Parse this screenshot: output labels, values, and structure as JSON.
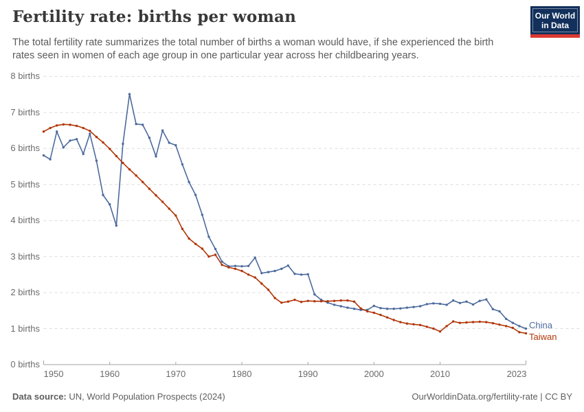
{
  "header": {
    "title": "Fertility rate: births per woman",
    "subtitle": "The total fertility rate summarizes the total number of births a woman would have, if she experienced the birth rates seen in women of each age group in one particular year across her childbearing years.",
    "logo": {
      "line1": "Our World",
      "line2": "in Data",
      "bg_color": "#12305b",
      "accent_color": "#dc3932"
    }
  },
  "chart_data": {
    "type": "line",
    "title": "Fertility rate: births per woman",
    "xlabel": "",
    "ylabel": "births",
    "xlim": [
      1950,
      2023
    ],
    "ylim": [
      0,
      8
    ],
    "grid": "horizontal-dashed",
    "legend_position": "end-of-line-labels",
    "x_ticks": [
      1950,
      1960,
      1970,
      1980,
      1990,
      2000,
      2010,
      2023
    ],
    "y_ticks": [
      {
        "value": 0,
        "label": "0 births"
      },
      {
        "value": 1,
        "label": "1 births"
      },
      {
        "value": 2,
        "label": "2 births"
      },
      {
        "value": 3,
        "label": "3 births"
      },
      {
        "value": 4,
        "label": "4 births"
      },
      {
        "value": 5,
        "label": "5 births"
      },
      {
        "value": 6,
        "label": "6 births"
      },
      {
        "value": 7,
        "label": "7 births"
      },
      {
        "value": 8,
        "label": "8 births"
      }
    ],
    "x": [
      1950,
      1951,
      1952,
      1953,
      1954,
      1955,
      1956,
      1957,
      1958,
      1959,
      1960,
      1961,
      1962,
      1963,
      1964,
      1965,
      1966,
      1967,
      1968,
      1969,
      1970,
      1971,
      1972,
      1973,
      1974,
      1975,
      1976,
      1977,
      1978,
      1979,
      1980,
      1981,
      1982,
      1983,
      1984,
      1985,
      1986,
      1987,
      1988,
      1989,
      1990,
      1991,
      1992,
      1993,
      1994,
      1995,
      1996,
      1997,
      1998,
      1999,
      2000,
      2001,
      2002,
      2003,
      2004,
      2005,
      2006,
      2007,
      2008,
      2009,
      2010,
      2011,
      2012,
      2013,
      2014,
      2015,
      2016,
      2017,
      2018,
      2019,
      2020,
      2021,
      2022,
      2023
    ],
    "series": [
      {
        "name": "China",
        "color": "#4C6A9C",
        "values": [
          5.81,
          5.7,
          6.47,
          6.03,
          6.22,
          6.26,
          5.85,
          6.41,
          5.66,
          4.71,
          4.45,
          3.86,
          6.13,
          7.51,
          6.68,
          6.66,
          6.3,
          5.78,
          6.5,
          6.16,
          6.09,
          5.56,
          5.07,
          4.71,
          4.16,
          3.55,
          3.21,
          2.86,
          2.73,
          2.74,
          2.73,
          2.74,
          2.97,
          2.54,
          2.57,
          2.6,
          2.66,
          2.75,
          2.52,
          2.5,
          2.51,
          1.95,
          1.8,
          1.72,
          1.66,
          1.62,
          1.58,
          1.55,
          1.52,
          1.52,
          1.63,
          1.57,
          1.55,
          1.55,
          1.56,
          1.58,
          1.6,
          1.62,
          1.68,
          1.7,
          1.69,
          1.66,
          1.78,
          1.71,
          1.75,
          1.67,
          1.77,
          1.81,
          1.54,
          1.48,
          1.27,
          1.16,
          1.07,
          1.0
        ]
      },
      {
        "name": "Taiwan",
        "color": "#B13507",
        "values": [
          6.47,
          6.57,
          6.64,
          6.67,
          6.66,
          6.63,
          6.57,
          6.49,
          6.32,
          6.17,
          5.99,
          5.79,
          5.6,
          5.42,
          5.25,
          5.07,
          4.88,
          4.7,
          4.52,
          4.33,
          4.14,
          3.77,
          3.5,
          3.35,
          3.22,
          3.0,
          3.05,
          2.77,
          2.7,
          2.66,
          2.6,
          2.5,
          2.42,
          2.25,
          2.08,
          1.85,
          1.72,
          1.75,
          1.8,
          1.74,
          1.77,
          1.76,
          1.76,
          1.76,
          1.77,
          1.78,
          1.78,
          1.75,
          1.56,
          1.48,
          1.44,
          1.38,
          1.31,
          1.24,
          1.18,
          1.14,
          1.12,
          1.1,
          1.05,
          1.0,
          0.92,
          1.07,
          1.2,
          1.16,
          1.17,
          1.18,
          1.19,
          1.18,
          1.15,
          1.11,
          1.07,
          1.02,
          0.9,
          0.87
        ]
      }
    ]
  },
  "footer": {
    "source_label": "Data source:",
    "source_text": " UN, World Population Prospects (2024)",
    "credit": "OurWorldinData.org/fertility-rate | CC BY"
  }
}
